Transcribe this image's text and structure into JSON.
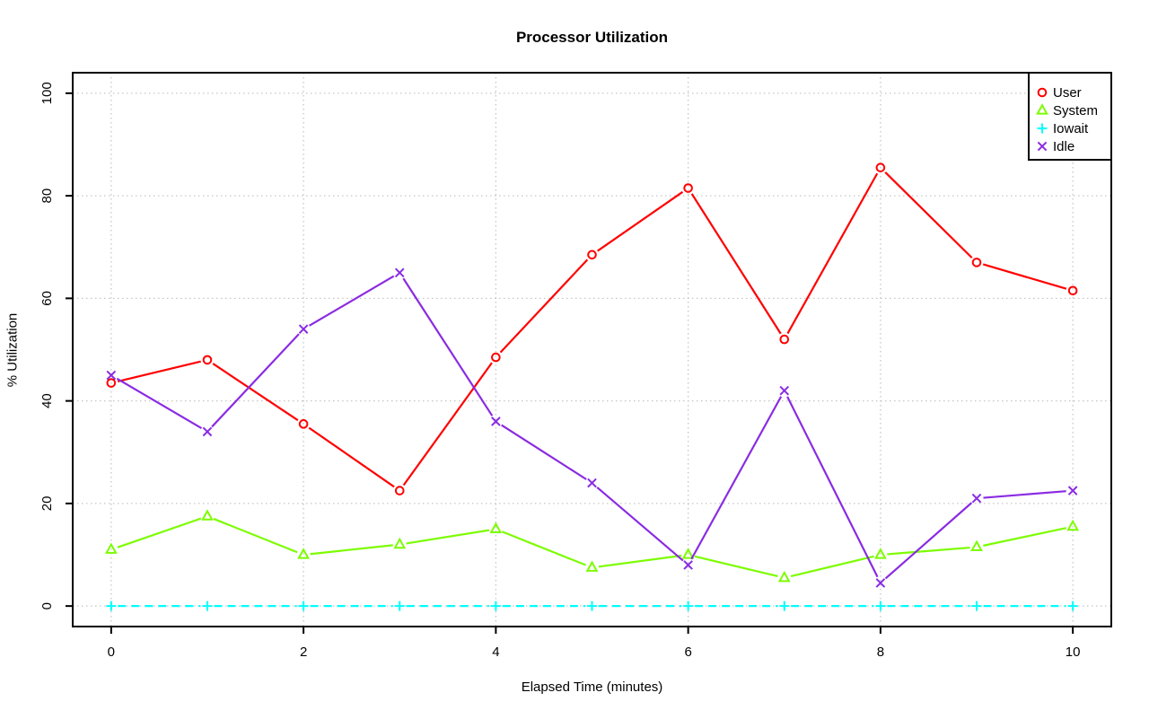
{
  "chart_data": {
    "type": "line",
    "title": "Processor Utilization",
    "xlabel": "Elapsed Time (minutes)",
    "ylabel": "% Utilization",
    "x": [
      0,
      1,
      2,
      3,
      4,
      5,
      6,
      7,
      8,
      9,
      10
    ],
    "xticks": [
      0,
      2,
      4,
      6,
      8,
      10
    ],
    "yticks": [
      0,
      20,
      40,
      60,
      80,
      100
    ],
    "xlim": [
      -0.4,
      10.4
    ],
    "ylim": [
      -4,
      104
    ],
    "grid": true,
    "grid_style": "dotted",
    "grid_color": "#c6c6c6",
    "frame_color": "#000000",
    "legend_position": "top-right",
    "series": [
      {
        "name": "User",
        "color": "#ff0000",
        "marker": "circle",
        "line_style": "solid",
        "values": [
          43.5,
          48,
          35.5,
          22.5,
          48.5,
          68.5,
          81.5,
          52,
          85.5,
          67,
          61.5
        ]
      },
      {
        "name": "System",
        "color": "#7cfc00",
        "marker": "triangle",
        "line_style": "solid",
        "values": [
          11,
          17.5,
          10,
          12,
          15,
          7.5,
          10,
          5.5,
          10,
          11.5,
          15.5
        ]
      },
      {
        "name": "Iowait",
        "color": "#00ffff",
        "marker": "plus",
        "line_style": "dashed",
        "values": [
          0,
          0,
          0,
          0,
          0,
          0,
          0,
          0,
          0,
          0,
          0
        ]
      },
      {
        "name": "Idle",
        "color": "#8a2be2",
        "marker": "x",
        "line_style": "solid",
        "values": [
          45,
          34,
          54,
          65,
          36,
          24,
          8,
          42,
          4.5,
          21,
          22.5
        ]
      }
    ]
  }
}
